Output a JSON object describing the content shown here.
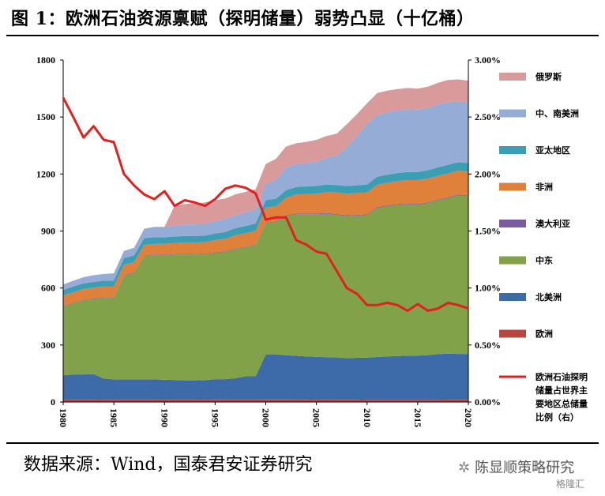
{
  "header": {
    "title": "图 1：欧洲石油资源禀赋（探明储量）弱势凸显（十亿桶）"
  },
  "footer": {
    "source": "数据来源：Wind，国泰君安证券研究",
    "watermark": "陈显顺策略研究",
    "watermark_sub": "格隆汇"
  },
  "chart_data": {
    "type": "area",
    "stacked": true,
    "x": [
      1980,
      1981,
      1982,
      1983,
      1984,
      1985,
      1986,
      1987,
      1988,
      1989,
      1990,
      1991,
      1992,
      1993,
      1994,
      1995,
      1996,
      1997,
      1998,
      1999,
      2000,
      2001,
      2002,
      2003,
      2004,
      2005,
      2006,
      2007,
      2008,
      2009,
      2010,
      2011,
      2012,
      2013,
      2014,
      2015,
      2016,
      2017,
      2018,
      2019,
      2020
    ],
    "xticks": [
      1980,
      1985,
      1990,
      1995,
      2000,
      2005,
      2010,
      2015,
      2020
    ],
    "ylim_left": [
      0,
      1800
    ],
    "yticks_left": [
      "0",
      "300",
      "600",
      "900",
      "1200",
      "1500",
      "1800"
    ],
    "ylim_right": [
      0,
      3
    ],
    "yticks_right": [
      "0.00%",
      "0.50%",
      "1.00%",
      "1.50%",
      "2.00%",
      "2.50%",
      "3.00%"
    ],
    "series": [
      {
        "name": "欧洲",
        "color": "#b5473f",
        "values": [
          15,
          15,
          15,
          15,
          14,
          14,
          14,
          14,
          14,
          14,
          14,
          14,
          14,
          14,
          15,
          15,
          15,
          15,
          15,
          15,
          16,
          16,
          16,
          15,
          15,
          14,
          14,
          13,
          13,
          13,
          12,
          12,
          12,
          12,
          12,
          12,
          12,
          12,
          13,
          13,
          13
        ]
      },
      {
        "name": "北美洲",
        "color": "#3d6aa8",
        "values": [
          125,
          130,
          130,
          132,
          110,
          105,
          105,
          105,
          105,
          105,
          103,
          102,
          100,
          100,
          100,
          105,
          105,
          110,
          120,
          120,
          235,
          235,
          230,
          228,
          225,
          224,
          222,
          222,
          218,
          220,
          222,
          225,
          228,
          230,
          232,
          232,
          235,
          240,
          242,
          240,
          240
        ]
      },
      {
        "name": "中东",
        "color": "#82a24a",
        "values": [
          362,
          375,
          390,
          395,
          425,
          430,
          545,
          560,
          650,
          655,
          655,
          660,
          663,
          662,
          662,
          665,
          670,
          680,
          680,
          690,
          690,
          695,
          735,
          745,
          748,
          750,
          755,
          750,
          748,
          748,
          750,
          785,
          790,
          795,
          795,
          795,
          800,
          810,
          818,
          835,
          830
        ]
      },
      {
        "name": "澳大利亚",
        "color": "#7c5a9e",
        "values": [
          3,
          3,
          3,
          3,
          3,
          3,
          3,
          3,
          3,
          3,
          3,
          3,
          3,
          3,
          3,
          3,
          3,
          3,
          3,
          3,
          4,
          4,
          4,
          4,
          4,
          4,
          4,
          4,
          4,
          4,
          4,
          4,
          4,
          4,
          4,
          4,
          4,
          4,
          4,
          4,
          4
        ]
      },
      {
        "name": "非洲",
        "color": "#e0813b",
        "values": [
          55,
          55,
          57,
          57,
          57,
          57,
          55,
          55,
          55,
          55,
          58,
          58,
          60,
          60,
          62,
          64,
          66,
          70,
          70,
          74,
          78,
          80,
          90,
          100,
          103,
          105,
          110,
          113,
          114,
          115,
          115,
          118,
          120,
          122,
          125,
          125,
          125,
          125,
          126,
          126,
          126
        ]
      },
      {
        "name": "亚太地区",
        "color": "#3a9eb5",
        "values": [
          30,
          30,
          30,
          30,
          30,
          30,
          35,
          35,
          35,
          35,
          34,
          34,
          34,
          34,
          34,
          35,
          36,
          37,
          38,
          38,
          40,
          40,
          40,
          40,
          40,
          40,
          40,
          40,
          40,
          40,
          42,
          42,
          42,
          42,
          43,
          43,
          44,
          44,
          45,
          45,
          45
        ]
      },
      {
        "name": "中、南美洲",
        "color": "#95acd6",
        "values": [
          28,
          30,
          32,
          35,
          35,
          38,
          38,
          40,
          50,
          55,
          55,
          58,
          60,
          62,
          64,
          65,
          68,
          70,
          72,
          75,
          85,
          100,
          120,
          120,
          122,
          128,
          140,
          155,
          205,
          260,
          318,
          325,
          328,
          330,
          330,
          328,
          328,
          330,
          332,
          320,
          318
        ]
      },
      {
        "name": "俄罗斯",
        "color": "#d99a9c",
        "values": [
          0,
          0,
          0,
          0,
          0,
          0,
          0,
          0,
          0,
          0,
          0,
          105,
          108,
          110,
          110,
          110,
          108,
          108,
          108,
          105,
          105,
          110,
          110,
          110,
          112,
          115,
          115,
          115,
          120,
          115,
          110,
          115,
          115,
          112,
          112,
          110,
          112,
          115,
          115,
          115,
          115
        ]
      }
    ],
    "line": {
      "name": "欧洲石油探明储量占世界主要地区总储量比例（右）",
      "axis": "right",
      "color": "#e32020",
      "values": [
        2.67,
        2.5,
        2.32,
        2.42,
        2.3,
        2.28,
        2.0,
        1.9,
        1.82,
        1.78,
        1.85,
        1.72,
        1.77,
        1.75,
        1.72,
        1.78,
        1.87,
        1.9,
        1.88,
        1.83,
        1.6,
        1.62,
        1.62,
        1.42,
        1.38,
        1.32,
        1.3,
        1.15,
        1.0,
        0.95,
        0.85,
        0.85,
        0.87,
        0.85,
        0.8,
        0.86,
        0.8,
        0.82,
        0.87,
        0.85,
        0.82
      ]
    },
    "legend": {
      "placement": "right",
      "entries": [
        {
          "label": "俄罗斯",
          "color": "#d99a9c",
          "kind": "box"
        },
        {
          "label": "中、南美洲",
          "color": "#95acd6",
          "kind": "box"
        },
        {
          "label": "亚太地区",
          "color": "#3a9eb5",
          "kind": "box"
        },
        {
          "label": "非洲",
          "color": "#e0813b",
          "kind": "box"
        },
        {
          "label": "澳大利亚",
          "color": "#7c5a9e",
          "kind": "box"
        },
        {
          "label": "中东",
          "color": "#82a24a",
          "kind": "box"
        },
        {
          "label": "北美洲",
          "color": "#3d6aa8",
          "kind": "box"
        },
        {
          "label": "欧洲",
          "color": "#b5473f",
          "kind": "box"
        },
        {
          "label": "欧洲石油探明\n储量占世界主\n要地区总储量\n比例（右）",
          "color": "#e32020",
          "kind": "line"
        }
      ]
    },
    "grid": false
  }
}
